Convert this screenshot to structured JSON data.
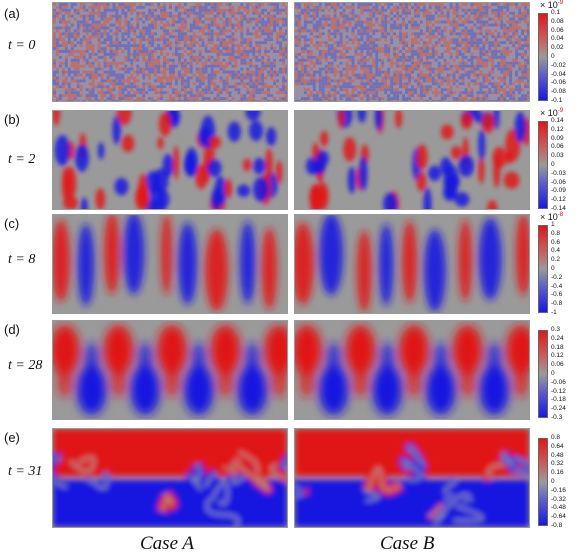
{
  "rows": [
    {
      "panel": "(a)",
      "time": "t = 0",
      "scale_base": "× 10",
      "scale_exp": "-9",
      "ticks": [
        "0.1",
        "0.08",
        "0.06",
        "0.04",
        "0.02",
        "0",
        "-0.02",
        "-0.04",
        "-0.06",
        "-0.08",
        "-0.1"
      ]
    },
    {
      "panel": "(b)",
      "time": "t = 2",
      "scale_base": "× 10",
      "scale_exp": "-9",
      "ticks": [
        "0.14",
        "0.12",
        "0.09",
        "0.06",
        "0.03",
        "0",
        "-0.03",
        "-0.06",
        "-0.09",
        "-0.12",
        "-0.14"
      ]
    },
    {
      "panel": "(c)",
      "time": "t = 8",
      "scale_base": "× 10",
      "scale_exp": "-8",
      "ticks": [
        "1",
        "0.8",
        "0.6",
        "0.4",
        "0.2",
        "0",
        "-0.2",
        "-0.4",
        "-0.6",
        "-0.8",
        "-1"
      ]
    },
    {
      "panel": "(d)",
      "time": "t = 28",
      "scale_base": "",
      "scale_exp": "",
      "ticks": [
        "0.3",
        "0.24",
        "0.18",
        "0.12",
        "0.06",
        "0",
        "-0.06",
        "-0.12",
        "-0.18",
        "-0.24",
        "-0.3"
      ]
    },
    {
      "panel": "(e)",
      "time": "t = 31",
      "scale_base": "",
      "scale_exp": "",
      "ticks": [
        "0.8",
        "0.64",
        "0.48",
        "0.32",
        "0.16",
        "0",
        "-0.16",
        "-0.32",
        "-0.48",
        "-0.64",
        "-0.8"
      ]
    }
  ],
  "cases": [
    "Case A",
    "Case B"
  ],
  "colors": {
    "positive": "#e01818",
    "neutral": "#9a9a9a",
    "negative": "#1818e0"
  }
}
